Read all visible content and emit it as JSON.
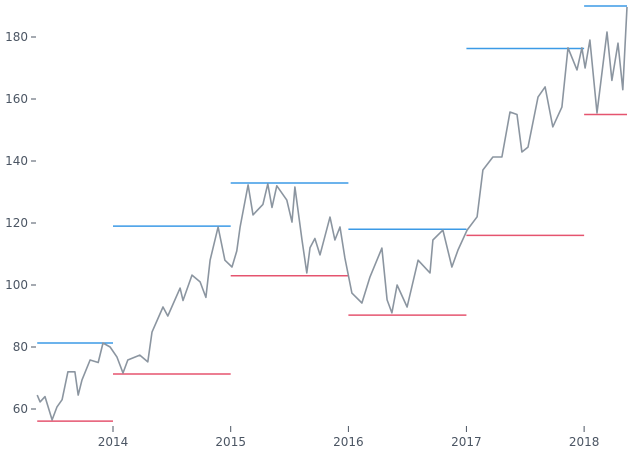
{
  "chart_data": {
    "type": "line",
    "title": "",
    "xlabel": "",
    "ylabel": "",
    "xlim": [
      "2013-05-11",
      "2018-05-14"
    ],
    "ylim": [
      55,
      191
    ],
    "grid": false,
    "x_ticks": [
      "2014",
      "2015",
      "2016",
      "2017",
      "2018"
    ],
    "y_ticks": [
      60,
      80,
      100,
      120,
      140,
      160,
      180
    ],
    "colors": {
      "price": "#8b95a0",
      "high": "#3b9ae6",
      "low": "#e5546f",
      "axis_text": "#4b5563"
    },
    "series": [
      {
        "role": "price",
        "x": [
          "2013-05-11",
          "2013-05-20",
          "2013-06-04",
          "2013-06-26",
          "2013-07-11",
          "2013-07-27",
          "2013-08-14",
          "2013-09-05",
          "2013-09-15",
          "2013-09-27",
          "2013-10-22",
          "2013-11-16",
          "2013-12-01",
          "2013-12-23",
          "2014-01-13",
          "2014-02-01",
          "2014-02-16",
          "2014-03-25",
          "2014-04-19",
          "2014-05-02",
          "2014-06-05",
          "2014-06-20",
          "2014-07-28",
          "2014-08-06",
          "2014-09-03",
          "2014-09-28",
          "2014-10-16",
          "2014-10-29",
          "2014-11-23",
          "2014-12-14",
          "2015-01-05",
          "2015-01-20",
          "2015-01-30",
          "2015-02-24",
          "2015-03-11",
          "2015-04-11",
          "2015-04-26",
          "2015-05-09",
          "2015-05-24",
          "2015-06-24",
          "2015-07-10",
          "2015-07-19",
          "2015-08-10",
          "2015-08-25",
          "2015-09-04",
          "2015-09-19",
          "2015-10-05",
          "2015-11-05",
          "2015-11-20",
          "2015-12-06",
          "2015-12-21",
          "2016-01-12",
          "2016-02-12",
          "2016-03-08",
          "2016-04-14",
          "2016-04-30",
          "2016-05-15",
          "2016-05-31",
          "2016-07-01",
          "2016-08-04",
          "2016-09-10",
          "2016-09-19",
          "2016-10-20",
          "2016-11-17",
          "2016-12-06",
          "2017-01-03",
          "2017-02-03",
          "2017-02-21",
          "2017-03-24",
          "2017-04-21",
          "2017-05-16",
          "2017-06-07",
          "2017-06-22",
          "2017-07-11",
          "2017-08-11",
          "2017-09-02",
          "2017-09-26",
          "2017-10-24",
          "2017-11-12",
          "2017-12-10",
          "2017-12-25",
          "2018-01-04",
          "2018-01-19",
          "2018-02-10",
          "2018-03-13",
          "2018-03-28",
          "2018-04-16",
          "2018-05-01",
          "2018-05-14"
        ],
        "y": [
          64.5,
          62.3,
          64,
          56.5,
          60.6,
          63,
          72,
          72,
          64.5,
          69.4,
          75.8,
          75,
          81.3,
          80,
          76.8,
          71.6,
          75.8,
          77.4,
          75.2,
          84.8,
          92.9,
          90,
          99,
          95,
          103.2,
          101,
          96,
          108,
          118.7,
          108,
          105.8,
          111,
          118.7,
          132.3,
          122.6,
          126,
          132.6,
          125,
          132,
          127.4,
          120.3,
          131.6,
          114.5,
          103.9,
          112,
          115,
          109.7,
          121.9,
          114.5,
          118.7,
          108.7,
          97.4,
          94.2,
          102.6,
          111.9,
          95.2,
          91,
          100,
          92.9,
          108,
          103.9,
          114.5,
          117.7,
          105.8,
          111.3,
          117.7,
          122,
          137.1,
          141.3,
          141.3,
          155.8,
          155,
          142.9,
          144.5,
          160.6,
          163.9,
          151,
          157.4,
          176.5,
          169.4,
          176.5,
          170,
          179,
          155.5,
          181.6,
          166,
          178,
          163,
          189.7
        ]
      }
    ],
    "yearly_ranges": [
      {
        "start": "2013-05-11",
        "end": "2014-01-01",
        "high": 81.3,
        "low": 56.1
      },
      {
        "start": "2014-01-01",
        "end": "2015-01-01",
        "high": 119,
        "low": 71.3
      },
      {
        "start": "2015-01-01",
        "end": "2016-01-01",
        "high": 132.9,
        "low": 103
      },
      {
        "start": "2016-01-01",
        "end": "2017-01-01",
        "high": 118,
        "low": 90.3
      },
      {
        "start": "2017-01-01",
        "end": "2018-01-01",
        "high": 176.3,
        "low": 116
      },
      {
        "start": "2018-01-01",
        "end": "2018-05-14",
        "high": 190,
        "low": 155
      }
    ]
  }
}
